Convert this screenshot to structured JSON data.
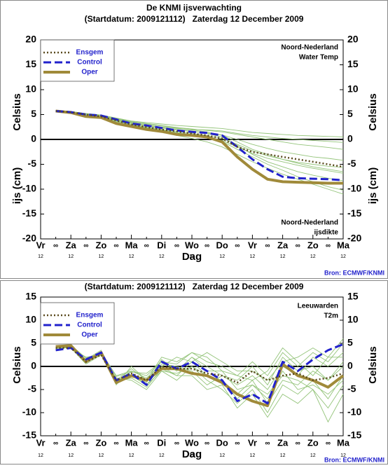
{
  "chart_data": [
    {
      "type": "line",
      "title": "De KNMI ijsverwachting",
      "subtitle": "(Startdatum: 2009121112)   Zaterdag 12 December 2009",
      "ylabel": "Celsius",
      "ylabel2": "ijs (cm)",
      "xlabel": "Dag",
      "annotations": [
        [
          "Noord-Nederland",
          "Water Temp"
        ],
        [
          "Noord-Nederland",
          "ijsdikte"
        ]
      ],
      "source": "Bron: ECMWF/KNMI",
      "ylim": [
        -20,
        20
      ],
      "yticks": [
        -20,
        -15,
        -10,
        -5,
        0,
        5,
        10,
        15,
        20
      ],
      "xlim": [
        0,
        10
      ],
      "xticks": [
        {
          "value": 0,
          "label": "Vr"
        },
        {
          "value": 0.5,
          "label": "∞"
        },
        {
          "value": 1,
          "label": "Za"
        },
        {
          "value": 1.5,
          "label": "∞"
        },
        {
          "value": 2,
          "label": "Zo"
        },
        {
          "value": 2.5,
          "label": "∞"
        },
        {
          "value": 3,
          "label": "Ma"
        },
        {
          "value": 3.5,
          "label": "∞"
        },
        {
          "value": 4,
          "label": "Di"
        },
        {
          "value": 4.5,
          "label": "∞"
        },
        {
          "value": 5,
          "label": "Wo"
        },
        {
          "value": 5.5,
          "label": "∞"
        },
        {
          "value": 6,
          "label": "Do"
        },
        {
          "value": 6.5,
          "label": "∞"
        },
        {
          "value": 7,
          "label": "Vr"
        },
        {
          "value": 7.5,
          "label": "∞"
        },
        {
          "value": 8,
          "label": "Za"
        },
        {
          "value": 8.5,
          "label": "∞"
        },
        {
          "value": 9,
          "label": "Zo"
        },
        {
          "value": 9.5,
          "label": "∞"
        },
        {
          "value": 10,
          "label": "Ma"
        }
      ],
      "xtick_sublabels": [
        "12",
        "12",
        "12",
        "12",
        "12",
        "12",
        "12",
        "12",
        "12",
        "12",
        "12"
      ],
      "x": [
        0.5,
        1,
        1.5,
        2,
        2.5,
        3,
        3.5,
        4,
        4.5,
        5,
        5.5,
        6,
        6.5,
        7,
        7.5,
        8,
        8.5,
        9,
        9.5,
        10
      ],
      "members_color": "#94c47a",
      "members": [
        [
          5.8,
          5.6,
          5.2,
          4.9,
          4.2,
          3.6,
          3.2,
          2.8,
          2.4,
          2.1,
          1.8,
          1.5,
          1.0,
          0.5,
          0,
          -0.5,
          -1,
          -1.3,
          -1.6,
          -2
        ],
        [
          5.7,
          5.4,
          5,
          4.6,
          3.8,
          3,
          2.4,
          1.9,
          1.4,
          1,
          0.5,
          -0.2,
          -1.5,
          -2.8,
          -3.8,
          -4.5,
          -5.2,
          -5.8,
          -6.3,
          -6.8
        ],
        [
          5.6,
          5.5,
          5.1,
          4.7,
          4,
          3.3,
          2.9,
          2.5,
          2.2,
          2,
          1.9,
          1.7,
          1.2,
          0.8,
          0.5,
          0.2,
          0,
          -0.2,
          -0.4,
          -0.6
        ],
        [
          5.7,
          5.4,
          4.8,
          4.4,
          3.5,
          2.7,
          2.1,
          1.5,
          0.8,
          0.2,
          -0.5,
          -1.5,
          -3,
          -4.5,
          -5.8,
          -7,
          -8,
          -9,
          -10,
          -11
        ],
        [
          5.8,
          5.5,
          5,
          4.6,
          3.9,
          3.2,
          2.7,
          2.3,
          1.9,
          1.6,
          1.3,
          0.9,
          0,
          -1,
          -1.8,
          -2.5,
          -3,
          -3.5,
          -3.8,
          -4.2
        ],
        [
          5.7,
          5.5,
          5.1,
          4.8,
          4.1,
          3.5,
          3.1,
          2.7,
          2.3,
          1.9,
          1.5,
          0.8,
          -0.5,
          -2,
          -3,
          -4,
          -4.8,
          -5.5,
          -6,
          -6.5
        ],
        [
          5.6,
          5.3,
          4.8,
          4.4,
          3.6,
          2.9,
          2.3,
          1.8,
          1.3,
          0.9,
          0.4,
          -0.4,
          -2,
          -3.5,
          -5,
          -6.2,
          -7.5,
          -8.5,
          -9.5,
          -10.2
        ],
        [
          5.7,
          5.6,
          5.2,
          4.9,
          4.3,
          3.7,
          3.4,
          3.1,
          2.8,
          2.6,
          2.4,
          2.2,
          1.8,
          1.4,
          1.2,
          1,
          0.8,
          0.7,
          0.6,
          0.5
        ],
        [
          5.7,
          5.4,
          4.9,
          4.5,
          3.7,
          3,
          2.5,
          2,
          1.6,
          1.2,
          0.8,
          0.2,
          -1,
          -2.3,
          -3.3,
          -4,
          -4.6,
          -5,
          -5.4,
          -5.6
        ],
        [
          5.8,
          5.5,
          5,
          4.7,
          4,
          3.4,
          2.9,
          2.4,
          2,
          1.7,
          1.2,
          0.5,
          -1.2,
          -3,
          -4.5,
          -5.5,
          -6.5,
          -7.2,
          -7.8,
          -8.3
        ]
      ],
      "series": [
        {
          "name": "Ensgem",
          "color": "#5a4a1e",
          "style": "dotted",
          "values": [
            5.7,
            5.5,
            5,
            4.6,
            3.8,
            3,
            2.5,
            2,
            1.6,
            1.2,
            0.8,
            0.2,
            -1.5,
            -2.5,
            -3,
            -3.5,
            -4,
            -4.5,
            -5,
            -5.5
          ]
        },
        {
          "name": "Control",
          "color": "#2222cc",
          "style": "dashed",
          "values": [
            5.7,
            5.5,
            5,
            4.8,
            4,
            3.2,
            2.8,
            2.3,
            1.8,
            1.5,
            1.3,
            0.8,
            -1.5,
            -4,
            -6,
            -7.5,
            -7.8,
            -7.9,
            -8,
            -8.2
          ]
        },
        {
          "name": "Oper",
          "color": "#a08a3a",
          "style": "solid",
          "values": [
            5.7,
            5.4,
            4.6,
            4.4,
            3.2,
            2.6,
            2,
            1.6,
            1,
            0.8,
            0.5,
            -0.5,
            -3.5,
            -6,
            -8,
            -8.5,
            -8.6,
            -8.7,
            -8.8,
            -8.8
          ]
        }
      ]
    },
    {
      "type": "line",
      "subtitle": "(Startdatum: 2009121112)   Zaterdag 12 December 2009",
      "ylabel": "Celsius",
      "xlabel": "Dag",
      "annotations": [
        [
          "Leeuwarden",
          "T2m"
        ]
      ],
      "source": "Bron: ECMWF/KNMI",
      "ylim": [
        -15,
        15
      ],
      "yticks": [
        -15,
        -10,
        -5,
        0,
        5,
        10,
        15
      ],
      "xlim": [
        0,
        10
      ],
      "xticks": [
        {
          "value": 0,
          "label": "Vr"
        },
        {
          "value": 0.5,
          "label": "∞"
        },
        {
          "value": 1,
          "label": "Za"
        },
        {
          "value": 1.5,
          "label": "∞"
        },
        {
          "value": 2,
          "label": "Zo"
        },
        {
          "value": 2.5,
          "label": "∞"
        },
        {
          "value": 3,
          "label": "Ma"
        },
        {
          "value": 3.5,
          "label": "∞"
        },
        {
          "value": 4,
          "label": "Di"
        },
        {
          "value": 4.5,
          "label": "∞"
        },
        {
          "value": 5,
          "label": "Wo"
        },
        {
          "value": 5.5,
          "label": "∞"
        },
        {
          "value": 6,
          "label": "Do"
        },
        {
          "value": 6.5,
          "label": "∞"
        },
        {
          "value": 7,
          "label": "Vr"
        },
        {
          "value": 7.5,
          "label": "∞"
        },
        {
          "value": 8,
          "label": "Za"
        },
        {
          "value": 8.5,
          "label": "∞"
        },
        {
          "value": 9,
          "label": "Zo"
        },
        {
          "value": 9.5,
          "label": "∞"
        },
        {
          "value": 10,
          "label": "Ma"
        }
      ],
      "xtick_sublabels": [
        "12",
        "12",
        "12",
        "12",
        "12",
        "12",
        "12",
        "12",
        "12",
        "12",
        "12"
      ],
      "x": [
        0.5,
        1,
        1.5,
        2,
        2.5,
        3,
        3.5,
        4,
        4.5,
        5,
        5.5,
        6,
        6.5,
        7,
        7.5,
        8,
        8.5,
        9,
        9.5,
        10
      ],
      "members_color": "#94c47a",
      "members": [
        [
          4,
          4.5,
          1,
          3,
          -2,
          -1,
          -2,
          1,
          -1,
          2,
          0,
          -2,
          -4,
          -2,
          -5,
          0,
          -2,
          2,
          0,
          3
        ],
        [
          4,
          4,
          2,
          2.5,
          -3,
          -2,
          -4,
          0,
          -2,
          1,
          -2,
          -3,
          -6,
          -3,
          -8,
          -3,
          -4,
          -1,
          -3,
          0
        ],
        [
          3.5,
          4.5,
          1.5,
          3.5,
          -4,
          0,
          -3,
          2,
          1,
          3,
          1,
          0,
          -2,
          1,
          -2,
          3,
          0,
          3,
          1,
          5
        ],
        [
          4,
          4,
          0.5,
          2.5,
          -2.5,
          -3,
          -5,
          -1,
          -3,
          0,
          -3,
          -5,
          -8,
          -5,
          -10,
          -4,
          -6,
          -3,
          -7,
          -2
        ],
        [
          4.2,
          4.3,
          1.2,
          3,
          -3.5,
          -1,
          -2.5,
          0.5,
          0,
          -1,
          -4,
          -2,
          -3,
          0,
          -4,
          2,
          -1,
          0,
          -3,
          1
        ],
        [
          3.8,
          4.6,
          1.8,
          2.8,
          -2.8,
          -2,
          -3.5,
          1.5,
          -1,
          2,
          -1,
          -1,
          -5,
          -4,
          -6,
          -2,
          -3,
          -5,
          -9,
          -4
        ],
        [
          4,
          4.2,
          1,
          3.2,
          -3,
          -0.5,
          -3,
          0,
          2,
          1,
          3,
          1,
          -1,
          -1,
          -3,
          1,
          2,
          4,
          2,
          6
        ],
        [
          4.1,
          4.4,
          0.8,
          2.6,
          -3.2,
          -2.5,
          -4.5,
          -0.5,
          -2,
          -2,
          -5,
          -4,
          -9,
          -6,
          -11,
          -6,
          -8,
          -5,
          -12,
          -6
        ],
        [
          3.9,
          4.1,
          1.4,
          3.1,
          -2.2,
          -1.2,
          -1.5,
          1,
          0.5,
          3,
          2,
          -1,
          -2,
          -3,
          -1,
          4,
          1,
          -2,
          2,
          2
        ],
        [
          4,
          4.5,
          1.1,
          2.9,
          -3.8,
          -1.8,
          -4,
          -1,
          -1.5,
          0,
          -2,
          -3,
          -7,
          -4,
          -7,
          -1,
          -5,
          -4,
          -6,
          -3
        ]
      ],
      "series": [
        {
          "name": "Ensgem",
          "color": "#5a4a1e",
          "style": "dotted",
          "values": [
            4,
            4,
            1,
            2.5,
            -3,
            -1.5,
            -3,
            0,
            -0.5,
            -0.5,
            -1.5,
            -2,
            -3.5,
            -1,
            -3,
            -2,
            -1.5,
            -3,
            -2.5,
            -1.5
          ]
        },
        {
          "name": "Control",
          "color": "#2222cc",
          "style": "dashed",
          "values": [
            3.5,
            4,
            1.5,
            3,
            -3,
            -1.5,
            -4,
            1,
            -0.5,
            1,
            -1,
            -3,
            -7.5,
            -6,
            -8,
            1,
            -1,
            1.5,
            3.5,
            4.8
          ]
        },
        {
          "name": "Oper",
          "color": "#a08a3a",
          "style": "solid",
          "values": [
            4.3,
            4.5,
            1,
            3,
            -3.5,
            -2,
            -3,
            -0.5,
            -0.5,
            -1.5,
            -2,
            -3.5,
            -6,
            -7.5,
            -8.5,
            0.5,
            -2,
            -3,
            -4.5,
            -2
          ]
        }
      ]
    }
  ]
}
